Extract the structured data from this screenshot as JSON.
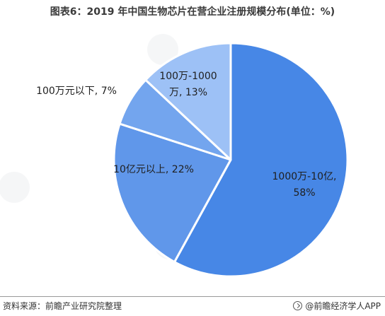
{
  "title": "图表6：2019 年中国生物芯片在营企业注册规模分布(单位：%)",
  "chart_data": {
    "type": "pie",
    "title": "图表6：2019 年中国生物芯片在营企业注册规模分布(单位：%)",
    "slices": [
      {
        "name": "1000万-10亿",
        "value": 58,
        "label": "1000万-10亿,|58%",
        "color": "#4787e6"
      },
      {
        "name": "10亿元以上",
        "value": 22,
        "label": "10亿元以上, 22%",
        "color": "#6097ea"
      },
      {
        "name": "100万元以下",
        "value": 7,
        "label": "100万元以下, 7%",
        "color": "#73a5ee"
      },
      {
        "name": "100万-1000万",
        "value": 13,
        "label": "100万-1000|万, 13%",
        "color": "#9dc1f6"
      }
    ],
    "start": "12 o'clock",
    "direction": "clockwise"
  },
  "footer": {
    "source": "资料来源：前瞻产业研究院整理",
    "brand": "@前瞻经济学人APP"
  },
  "icons": {
    "brand": "brand-logo-icon"
  }
}
